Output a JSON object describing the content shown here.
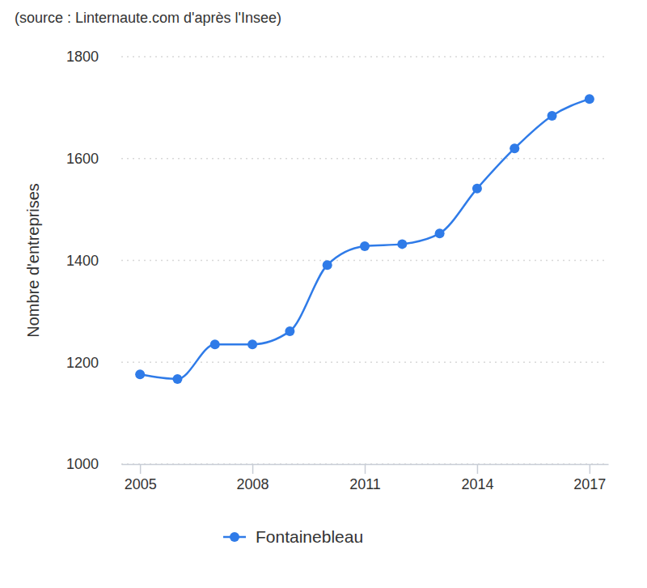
{
  "chart_data": {
    "type": "line",
    "title": "(source : Linternaute.com d'après l'Insee)",
    "y_label": "Nombre d'entreprises",
    "x": [
      2005,
      2006,
      2007,
      2008,
      2009,
      2010,
      2011,
      2012,
      2013,
      2014,
      2015,
      2016,
      2017
    ],
    "series": [
      {
        "name": "Fontainebleau",
        "color": "#2f7be8",
        "marker": "circle",
        "values": [
          1176,
          1167,
          1235,
          1235,
          1261,
          1391,
          1428,
          1432,
          1453,
          1541,
          1620,
          1684,
          1717
        ]
      }
    ],
    "xlim": [
      2004.5,
      2017.5
    ],
    "xticks": [
      2005,
      2008,
      2011,
      2014,
      2017
    ],
    "ylim": [
      1000,
      1800
    ],
    "yticks": [
      1000,
      1200,
      1400,
      1600,
      1800
    ],
    "grid": true,
    "legend": "bottom"
  }
}
